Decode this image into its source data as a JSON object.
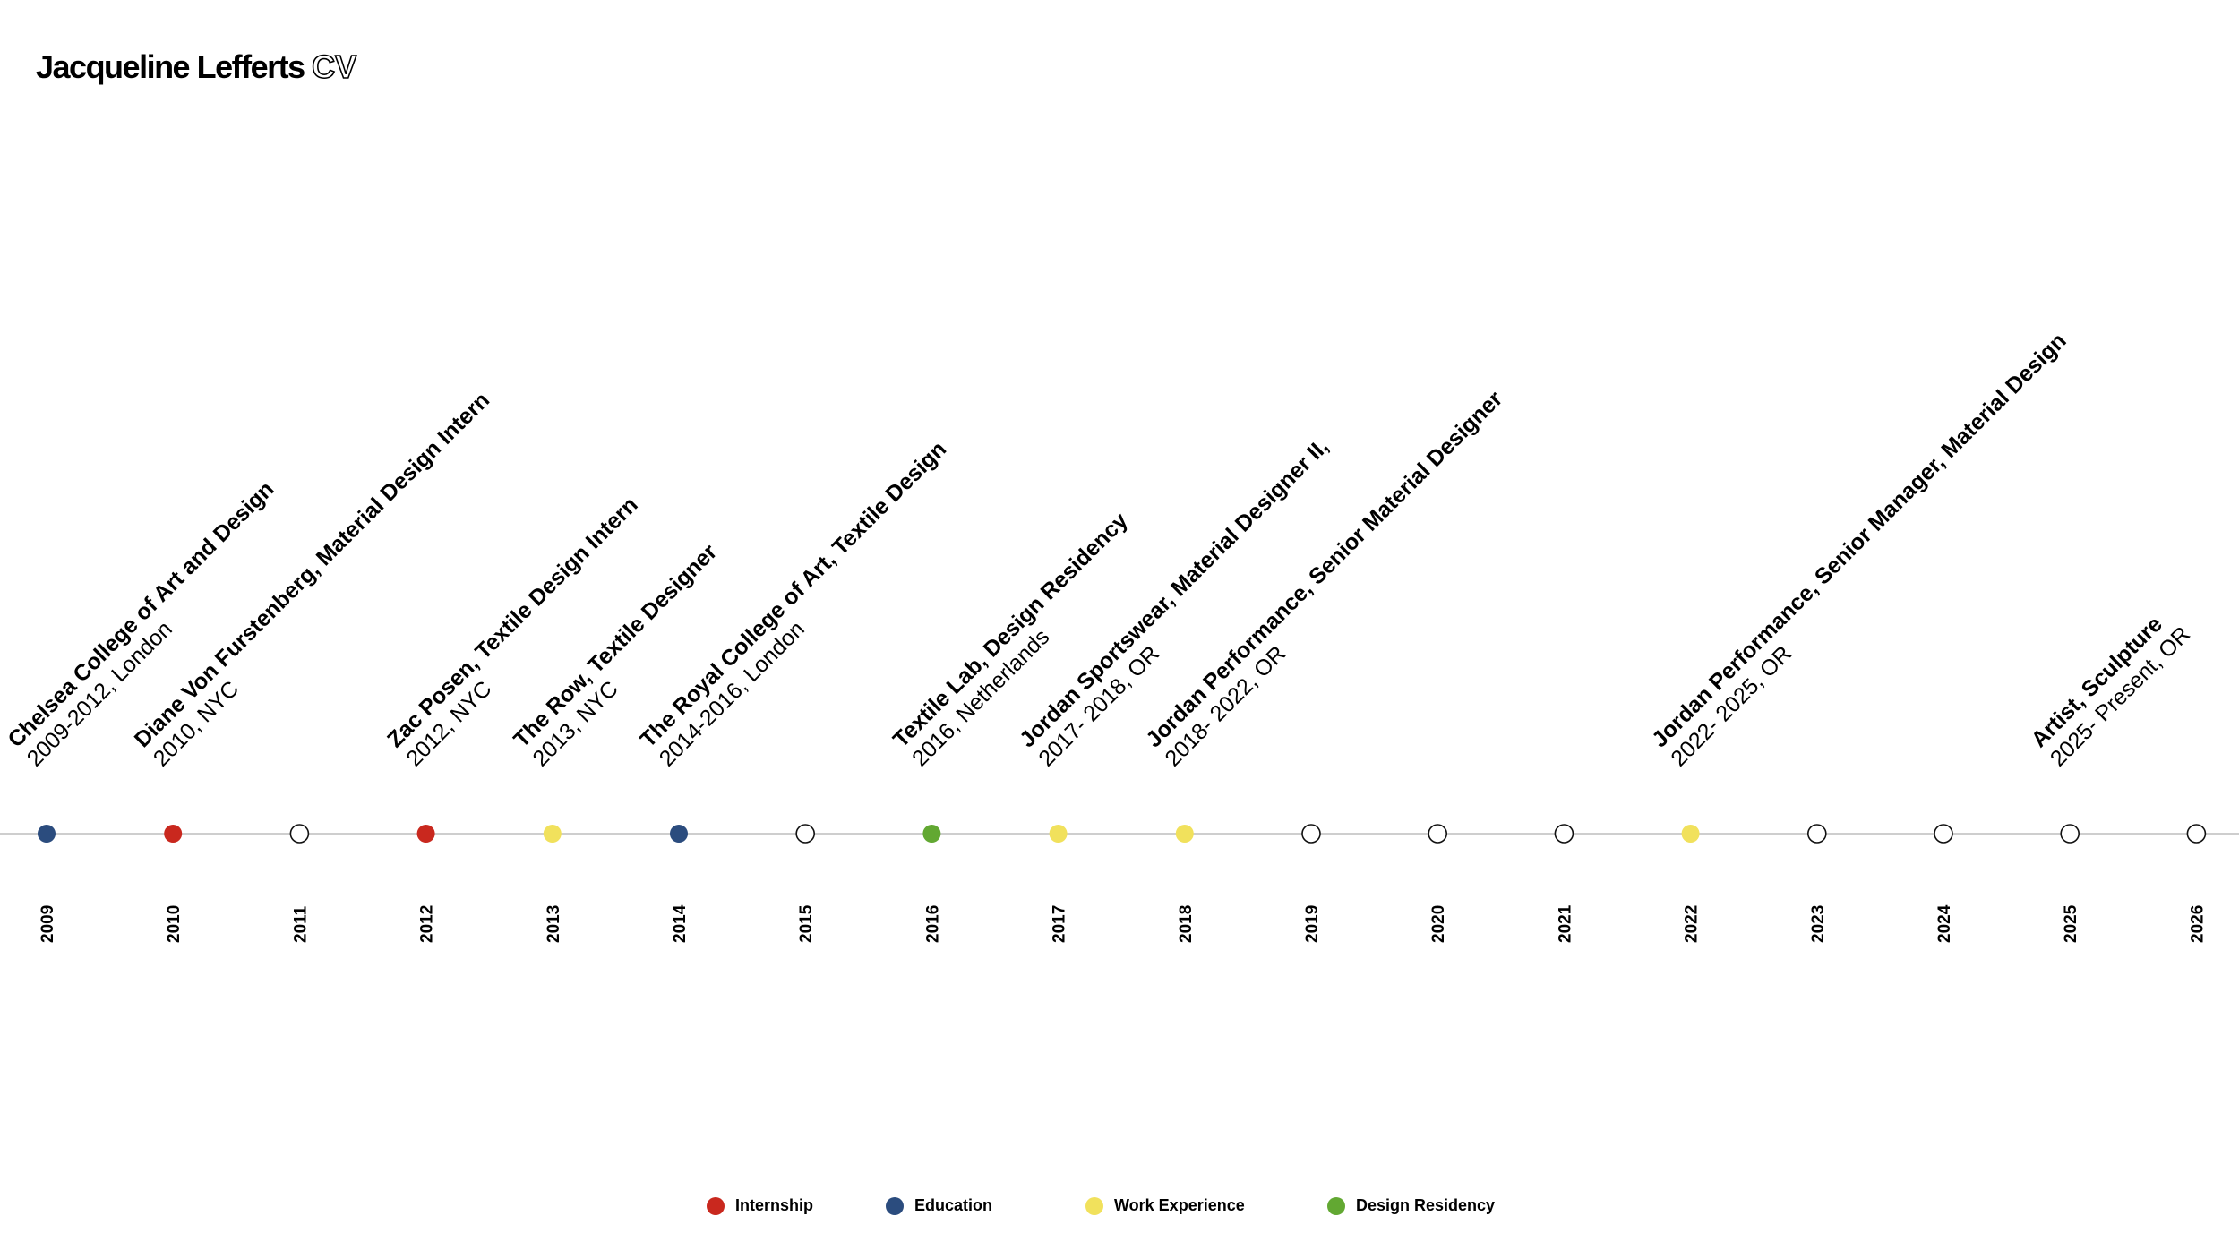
{
  "title": {
    "name": "Jacqueline Lefferts",
    "suffix": "CV"
  },
  "colors": {
    "Internship": "#c9281e",
    "Education": "#2b4c7e",
    "Work Experience": "#f1e15c",
    "Design Residency": "#62a832",
    "axis": "#bdbdbd"
  },
  "chart_data": {
    "type": "timeline",
    "years": [
      2009,
      2010,
      2011,
      2012,
      2013,
      2014,
      2015,
      2016,
      2017,
      2018,
      2019,
      2020,
      2021,
      2022,
      2023,
      2024,
      2025,
      2026
    ],
    "events": [
      {
        "year": 2009,
        "category": "Education",
        "title": "Chelsea College of Art and Design",
        "subtitle": "2009-2012, London"
      },
      {
        "year": 2010,
        "category": "Internship",
        "title": "Diane Von Furstenberg, Material Design Intern",
        "subtitle": "2010, NYC"
      },
      {
        "year": 2012,
        "category": "Internship",
        "title": "Zac Posen, Textile Design Intern",
        "subtitle": "2012, NYC"
      },
      {
        "year": 2013,
        "category": "Work Experience",
        "title": "The Row, Textile Designer",
        "subtitle": "2013, NYC"
      },
      {
        "year": 2014,
        "category": "Education",
        "title": "The Royal College of Art, Textile Design",
        "subtitle": "2014-2016, London"
      },
      {
        "year": 2016,
        "category": "Design Residency",
        "title": "Textile Lab, Design Residency",
        "subtitle": "2016, Netherlands"
      },
      {
        "year": 2017,
        "category": "Work Experience",
        "title": "Jordan Sportswear, Material Designer II,",
        "subtitle": "2017- 2018, OR"
      },
      {
        "year": 2018,
        "category": "Work Experience",
        "title": "Jordan Performance, Senior Material Designer",
        "subtitle": "2018- 2022, OR"
      },
      {
        "year": 2022,
        "category": "Work Experience",
        "title": "Jordan Performance, Senior Manager, Material Design",
        "subtitle": "2022- 2025, OR"
      },
      {
        "year": 2025,
        "category": null,
        "title": "Artist, Sculpture",
        "subtitle": "2025- Present, OR"
      }
    ],
    "legend": [
      "Internship",
      "Education",
      "Work Experience",
      "Design Residency"
    ]
  }
}
